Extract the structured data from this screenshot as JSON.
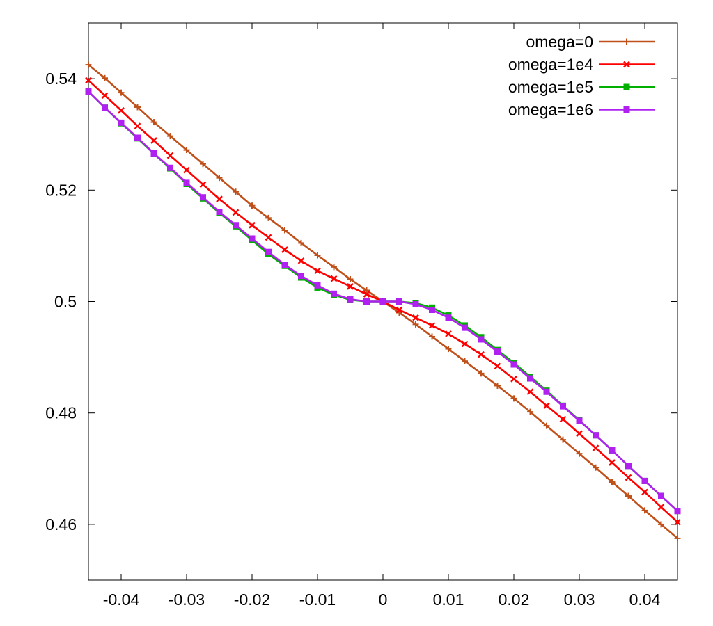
{
  "chart_data": {
    "type": "line",
    "title": "",
    "xlabel": "",
    "ylabel": "",
    "xlim": [
      -0.045,
      0.045
    ],
    "ylim": [
      0.45,
      0.55
    ],
    "grid": false,
    "legend_position": "top-right",
    "x_ticks": [
      "-0.04",
      "-0.03",
      "-0.02",
      "-0.01",
      "0",
      "0.01",
      "0.02",
      "0.03",
      "0.04"
    ],
    "y_ticks": [
      "0.46",
      "0.48",
      "0.5",
      "0.52",
      "0.54"
    ],
    "x_tick_values": [
      -0.04,
      -0.03,
      -0.02,
      -0.01,
      0,
      0.01,
      0.02,
      0.03,
      0.04
    ],
    "y_tick_values": [
      0.46,
      0.48,
      0.5,
      0.52,
      0.54
    ],
    "x": [
      -0.045,
      -0.0425,
      -0.04,
      -0.0375,
      -0.035,
      -0.0325,
      -0.03,
      -0.0275,
      -0.025,
      -0.0225,
      -0.02,
      -0.0175,
      -0.015,
      -0.0125,
      -0.01,
      -0.0075,
      -0.005,
      -0.0025,
      0,
      0.0025,
      0.005,
      0.0075,
      0.01,
      0.0125,
      0.015,
      0.0175,
      0.02,
      0.0225,
      0.025,
      0.0275,
      0.03,
      0.0325,
      0.035,
      0.0375,
      0.04,
      0.0425,
      0.045
    ],
    "series": [
      {
        "name": "omega=0",
        "color": "#c0501a",
        "marker": "plus",
        "values": [
          0.5425,
          0.5401,
          0.5375,
          0.5349,
          0.5322,
          0.5297,
          0.5272,
          0.5247,
          0.5222,
          0.5197,
          0.5172,
          0.515,
          0.5128,
          0.5105,
          0.5083,
          0.5062,
          0.504,
          0.502,
          0.5,
          0.498,
          0.4959,
          0.4937,
          0.4915,
          0.4893,
          0.4871,
          0.4849,
          0.4826,
          0.4802,
          0.4777,
          0.4752,
          0.4727,
          0.4702,
          0.4676,
          0.4651,
          0.4625,
          0.46,
          0.4575
        ]
      },
      {
        "name": "omega=1e4",
        "color": "#ff0000",
        "marker": "cross",
        "values": [
          0.5397,
          0.537,
          0.5343,
          0.5315,
          0.5289,
          0.5262,
          0.5236,
          0.521,
          0.5184,
          0.516,
          0.5137,
          0.5115,
          0.5093,
          0.5073,
          0.5055,
          0.5041,
          0.5027,
          0.5013,
          0.5,
          0.4985,
          0.4971,
          0.4957,
          0.4942,
          0.4924,
          0.4905,
          0.4884,
          0.4861,
          0.4838,
          0.4813,
          0.4789,
          0.4763,
          0.4737,
          0.4711,
          0.4684,
          0.4658,
          0.4631,
          0.4604
        ]
      },
      {
        "name": "omega=1e5",
        "color": "#00b000",
        "marker": "square",
        "values": [
          0.5377,
          0.5348,
          0.532,
          0.5293,
          0.5265,
          0.5239,
          0.5211,
          0.5185,
          0.5159,
          0.5135,
          0.511,
          0.5085,
          0.5064,
          0.5043,
          0.5025,
          0.5012,
          0.5003,
          0.5,
          0.5,
          0.5,
          0.4997,
          0.4989,
          0.4975,
          0.4957,
          0.4936,
          0.4913,
          0.489,
          0.4865,
          0.484,
          0.4813,
          0.4787,
          0.476,
          0.4733,
          0.4705,
          0.4678,
          0.4651,
          0.4624
        ]
      },
      {
        "name": "omega=1e6",
        "color": "#b020f0",
        "marker": "square",
        "values": [
          0.5377,
          0.5348,
          0.5321,
          0.5294,
          0.5266,
          0.524,
          0.5213,
          0.5187,
          0.5161,
          0.5137,
          0.5113,
          0.5089,
          0.5066,
          0.5046,
          0.5029,
          0.5014,
          0.5004,
          0.5,
          0.5,
          0.5,
          0.4995,
          0.4985,
          0.4971,
          0.4953,
          0.4932,
          0.491,
          0.4887,
          0.4862,
          0.4838,
          0.4812,
          0.4786,
          0.476,
          0.4733,
          0.4705,
          0.4678,
          0.4651,
          0.4624
        ]
      }
    ]
  }
}
